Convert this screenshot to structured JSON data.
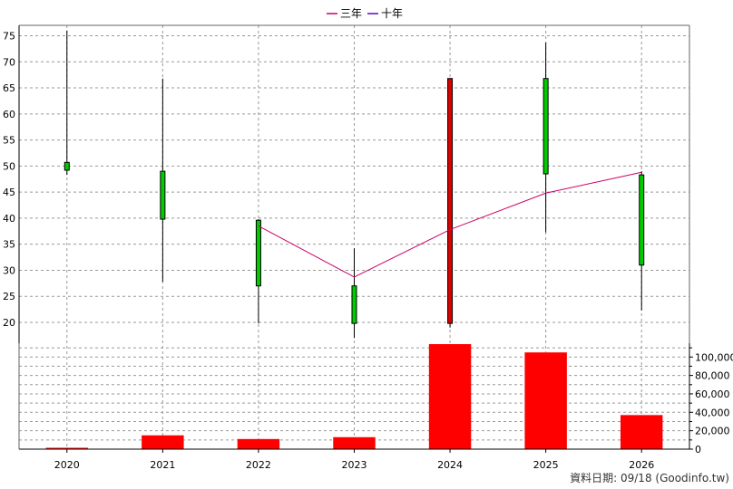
{
  "chart_data": {
    "type": "candlestick",
    "categories": [
      "2020",
      "2021",
      "2022",
      "2023",
      "2024",
      "2025",
      "2026"
    ],
    "legend": {
      "position": "top-center",
      "items": [
        {
          "label": "三年",
          "color": "#cc0066"
        },
        {
          "label": "十年",
          "color": "#6600cc"
        }
      ]
    },
    "price": {
      "ylim": [
        16,
        77
      ],
      "ticks": [
        20,
        25,
        30,
        35,
        40,
        45,
        50,
        55,
        60,
        65,
        70,
        75
      ],
      "grid": true,
      "candles": [
        {
          "year": "2020",
          "open": 49.2,
          "close": 50.7,
          "high": 76,
          "low": 48.3,
          "color": "#00cc00"
        },
        {
          "year": "2021",
          "open": 39.8,
          "close": 49.0,
          "high": 66.8,
          "low": 27.8,
          "color": "#00cc00"
        },
        {
          "year": "2022",
          "open": 27.0,
          "close": 39.6,
          "high": 39.8,
          "low": 19.8,
          "color": "#00cc00"
        },
        {
          "year": "2023",
          "open": 19.8,
          "close": 27.0,
          "high": 34.2,
          "low": 17.0,
          "color": "#00cc00"
        },
        {
          "year": "2024",
          "open": 66.8,
          "close": 19.8,
          "high": 66.8,
          "low": 19.0,
          "color": "#dd0000"
        },
        {
          "year": "2025",
          "open": 48.5,
          "close": 66.8,
          "high": 73.7,
          "low": 37.3,
          "color": "#00cc00"
        },
        {
          "year": "2026",
          "open": 31.0,
          "close": 48.3,
          "high": 49.0,
          "low": 22.3,
          "color": "#00cc00"
        }
      ],
      "lines": [
        {
          "name": "三年",
          "color": "#cc0066",
          "points": [
            {
              "x": "2022",
              "y": 38.5
            },
            {
              "x": "2023",
              "y": 28.7
            },
            {
              "x": "2024",
              "y": 37.8
            },
            {
              "x": "2025",
              "y": 44.8
            },
            {
              "x": "2026",
              "y": 48.8
            }
          ]
        }
      ]
    },
    "volume": {
      "ylim": [
        0,
        115000
      ],
      "ticks": [
        0,
        20000,
        40000,
        60000,
        80000,
        100000
      ],
      "tick_labels": [
        "0",
        "20,000",
        "40,000",
        "60,000",
        "80,000",
        "100,000"
      ],
      "color": "#ff0000",
      "values": [
        1500,
        15000,
        11000,
        13000,
        114000,
        105000,
        37000
      ]
    }
  },
  "source_note": "資料日期: 09/18 (Goodinfo.tw)"
}
